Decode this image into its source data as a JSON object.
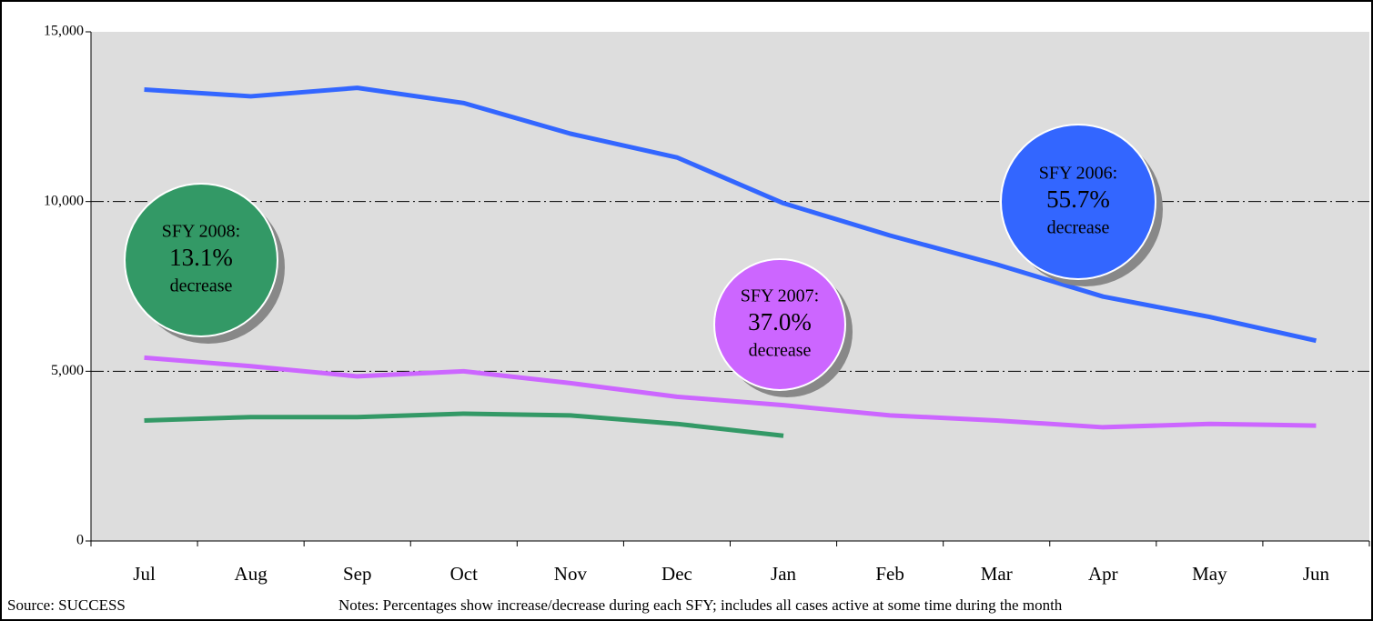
{
  "chart_data": {
    "type": "line",
    "categories": [
      "Jul",
      "Aug",
      "Sep",
      "Oct",
      "Nov",
      "Dec",
      "Jan",
      "Feb",
      "Mar",
      "Apr",
      "May",
      "Jun"
    ],
    "series": [
      {
        "color": "#3366ff",
        "values": [
          13300,
          13100,
          13350,
          12900,
          12000,
          11300,
          9950,
          9000,
          8150,
          7200,
          6600,
          5900
        ]
      },
      {
        "color": "#cc66ff",
        "values": [
          5400,
          5150,
          4850,
          5000,
          4650,
          4250,
          4000,
          3700,
          3550,
          3350,
          3450,
          3400
        ]
      },
      {
        "color": "#339966",
        "values": [
          3550,
          3650,
          3650,
          3750,
          3700,
          3450,
          3100,
          null,
          null,
          null,
          null,
          null
        ]
      }
    ],
    "ylim": [
      0,
      15000
    ],
    "yticks": [
      0,
      {
        "value": 5000,
        "label": "5,000"
      },
      {
        "value": 10000,
        "label": "10,000"
      },
      {
        "value": 15000,
        "label": "15,000"
      }
    ],
    "grid": true,
    "annotations": [
      {
        "lines": [
          "SFY 2008:",
          "13.1%",
          "decrease"
        ],
        "color": "#339966"
      },
      {
        "lines": [
          "SFY 2007:",
          "37.0%",
          "decrease"
        ],
        "color": "#cc66ff"
      },
      {
        "lines": [
          "SFY 2006:",
          "55.7%",
          "decrease"
        ],
        "color": "#3366ff"
      }
    ],
    "source": "Source: SUCCESS",
    "notes": "Notes: Percentages show increase/decrease during each SFY;  includes all cases active at some time during the month"
  }
}
